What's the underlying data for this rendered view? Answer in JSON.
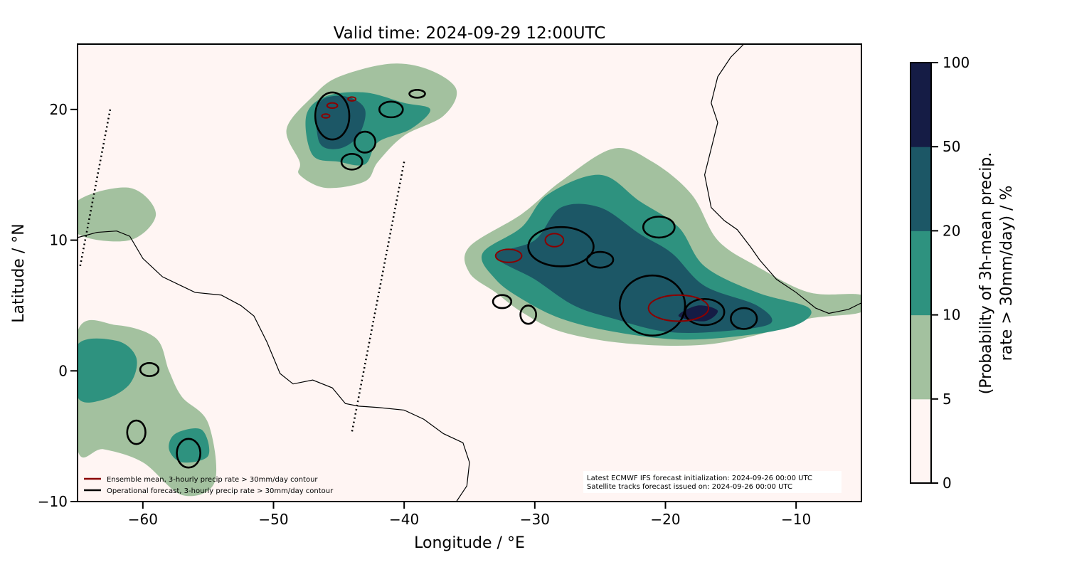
{
  "chart_data": {
    "type": "filled-contour-map",
    "title": "Valid time: 2024-09-29 12:00UTC",
    "xlabel": "Longitude / °E",
    "ylabel": "Latitude / °N",
    "xlim": [
      -65,
      -5
    ],
    "ylim": [
      -10,
      25
    ],
    "xticks": [
      -60,
      -50,
      -40,
      -30,
      -20,
      -10
    ],
    "xtick_labels": [
      "−60",
      "−50",
      "−40",
      "−30",
      "−20",
      "−10"
    ],
    "yticks": [
      -10,
      0,
      10,
      20
    ],
    "ytick_labels": [
      "−10",
      "0",
      "10",
      "20"
    ],
    "colorbar": {
      "label_line1": "(Probability of 3h-mean precip.",
      "label_line2": "rate > 30mm/day) / %",
      "levels": [
        0,
        5,
        10,
        20,
        50,
        100
      ],
      "level_labels": [
        "0",
        "5",
        "10",
        "20",
        "50",
        "100"
      ],
      "colors": [
        "#fff5f3",
        "#a3c19f",
        "#2e927f",
        "#1c5766",
        "#151c45"
      ]
    },
    "regions": [
      {
        "level": 1,
        "poly": [
          [
            -48,
            16
          ],
          [
            -49,
            18.5
          ],
          [
            -47,
            21
          ],
          [
            -45,
            22.5
          ],
          [
            -41,
            23.5
          ],
          [
            -38,
            23
          ],
          [
            -36,
            21.5
          ],
          [
            -37,
            19.5
          ],
          [
            -40,
            18
          ],
          [
            -42,
            16
          ],
          [
            -43,
            14.5
          ],
          [
            -46,
            14
          ],
          [
            -48,
            15
          ]
        ]
      },
      {
        "level": 2,
        "poly": [
          [
            -47,
            16.5
          ],
          [
            -47.5,
            19.5
          ],
          [
            -46,
            21
          ],
          [
            -43,
            21.3
          ],
          [
            -40,
            20.5
          ],
          [
            -38,
            20
          ],
          [
            -39.5,
            18.5
          ],
          [
            -42,
            17.5
          ],
          [
            -43,
            15.8
          ],
          [
            -45,
            16
          ]
        ]
      },
      {
        "level": 3,
        "poly": [
          [
            -46.5,
            17.5
          ],
          [
            -46.5,
            20.5
          ],
          [
            -44.5,
            21
          ],
          [
            -43,
            20
          ],
          [
            -43.5,
            18
          ],
          [
            -45,
            17
          ]
        ]
      },
      {
        "level": 1,
        "poly": [
          [
            -35,
            9.5
          ],
          [
            -31,
            12
          ],
          [
            -28,
            14.5
          ],
          [
            -24,
            17
          ],
          [
            -21,
            16
          ],
          [
            -18,
            13.5
          ],
          [
            -16,
            10
          ],
          [
            -13,
            8
          ],
          [
            -9,
            6
          ],
          [
            -5,
            5.8
          ],
          [
            -5,
            4.5
          ],
          [
            -9,
            4
          ],
          [
            -12,
            3
          ],
          [
            -17,
            2
          ],
          [
            -23,
            2.1
          ],
          [
            -28,
            3
          ],
          [
            -31,
            4.5
          ],
          [
            -33,
            6
          ],
          [
            -35,
            7.5
          ]
        ]
      },
      {
        "level": 2,
        "poly": [
          [
            -34,
            9
          ],
          [
            -31,
            11
          ],
          [
            -29,
            13.5
          ],
          [
            -25,
            15
          ],
          [
            -22,
            13
          ],
          [
            -19,
            11
          ],
          [
            -17,
            8
          ],
          [
            -13,
            6
          ],
          [
            -9,
            4.8
          ],
          [
            -10,
            3.5
          ],
          [
            -14,
            2.7
          ],
          [
            -19,
            2.4
          ],
          [
            -24,
            3
          ],
          [
            -28,
            4
          ],
          [
            -31,
            5.5
          ],
          [
            -33,
            7
          ]
        ]
      },
      {
        "level": 3,
        "poly": [
          [
            -33,
            8.8
          ],
          [
            -30,
            10
          ],
          [
            -28,
            12.5
          ],
          [
            -25,
            12.5
          ],
          [
            -22,
            10.5
          ],
          [
            -19.5,
            9
          ],
          [
            -17,
            6.5
          ],
          [
            -13,
            5
          ],
          [
            -12,
            3.6
          ],
          [
            -16,
            3
          ],
          [
            -20,
            3
          ],
          [
            -24,
            4
          ],
          [
            -27,
            5
          ],
          [
            -30,
            7
          ]
        ]
      },
      {
        "level": 4,
        "poly": [
          [
            -19,
            4.2
          ],
          [
            -17.5,
            5
          ],
          [
            -16,
            4.6
          ],
          [
            -17,
            3.8
          ]
        ]
      },
      {
        "level": 1,
        "poly": [
          [
            -65,
            3
          ],
          [
            -62,
            3.5
          ],
          [
            -59,
            2.5
          ],
          [
            -58,
            0
          ],
          [
            -57,
            -2
          ],
          [
            -55,
            -4
          ],
          [
            -54.5,
            -8.5
          ],
          [
            -57,
            -9.5
          ],
          [
            -60,
            -7
          ],
          [
            -63,
            -6
          ],
          [
            -65,
            -6
          ]
        ]
      },
      {
        "level": 2,
        "poly": [
          [
            -65,
            2
          ],
          [
            -62,
            2.3
          ],
          [
            -60.5,
            1
          ],
          [
            -61,
            -1
          ],
          [
            -63,
            -2.2
          ],
          [
            -65,
            -2
          ]
        ]
      },
      {
        "level": 2,
        "poly": [
          [
            -57.5,
            -4.8
          ],
          [
            -55.5,
            -4.5
          ],
          [
            -55,
            -6.5
          ],
          [
            -57,
            -7
          ],
          [
            -58,
            -6
          ]
        ]
      },
      {
        "level": 1,
        "poly": [
          [
            -65,
            13
          ],
          [
            -61,
            14
          ],
          [
            -59,
            12
          ],
          [
            -61,
            10
          ],
          [
            -65,
            10.5
          ]
        ]
      }
    ],
    "coastlines": [
      [
        [
          -65,
          10.2
        ],
        [
          -63.5,
          10.6
        ],
        [
          -62,
          10.7
        ],
        [
          -61,
          10.3
        ],
        [
          -60,
          8.6
        ],
        [
          -58.5,
          7.2
        ],
        [
          -56,
          6
        ],
        [
          -54,
          5.8
        ],
        [
          -52.5,
          5
        ],
        [
          -51.5,
          4.2
        ],
        [
          -50.5,
          2.2
        ],
        [
          -50,
          1
        ],
        [
          -49.5,
          -0.2
        ],
        [
          -48.5,
          -1
        ],
        [
          -47,
          -0.7
        ],
        [
          -45.5,
          -1.3
        ],
        [
          -44.5,
          -2.5
        ],
        [
          -43.5,
          -2.7
        ],
        [
          -42,
          -2.8
        ],
        [
          -40,
          -3
        ],
        [
          -38.5,
          -3.7
        ],
        [
          -37,
          -4.8
        ],
        [
          -35.5,
          -5.5
        ],
        [
          -35,
          -7
        ],
        [
          -35.2,
          -8.8
        ],
        [
          -36,
          -10
        ]
      ],
      [
        [
          -14,
          25
        ],
        [
          -15,
          24
        ],
        [
          -16,
          22.5
        ],
        [
          -16.5,
          20.5
        ],
        [
          -16,
          19
        ],
        [
          -16.5,
          17
        ],
        [
          -17,
          15
        ],
        [
          -16.7,
          13.5
        ],
        [
          -16.5,
          12.5
        ],
        [
          -15.5,
          11.5
        ],
        [
          -14.5,
          10.8
        ],
        [
          -13.5,
          9.5
        ],
        [
          -12.8,
          8.5
        ],
        [
          -11.5,
          7
        ],
        [
          -10,
          6
        ],
        [
          -8.5,
          4.8
        ],
        [
          -7.5,
          4.4
        ],
        [
          -6,
          4.7
        ],
        [
          -5,
          5.2
        ]
      ]
    ],
    "satellite_tracks": [
      [
        [
          -62.5,
          20
        ],
        [
          -64.8,
          8
        ]
      ],
      [
        [
          -40,
          16
        ],
        [
          -44,
          -4.7
        ]
      ]
    ],
    "operational_contours": [
      [
        -45.5,
        19.5,
        1.3,
        1.8
      ],
      [
        -43,
        17.5,
        0.8,
        0.8
      ],
      [
        -44,
        16,
        0.8,
        0.6
      ],
      [
        -41,
        20,
        0.9,
        0.6
      ],
      [
        -39,
        21.2,
        0.6,
        0.3
      ],
      [
        -20.5,
        11,
        1.2,
        0.8
      ],
      [
        -28,
        9.5,
        2.5,
        1.5
      ],
      [
        -25,
        8.5,
        1,
        0.6
      ],
      [
        -21,
        5,
        2.5,
        2.3
      ],
      [
        -17,
        4.5,
        1.5,
        1
      ],
      [
        -14,
        4,
        1,
        0.8
      ],
      [
        -32.5,
        5.3,
        0.7,
        0.5
      ],
      [
        -30.5,
        4.3,
        0.6,
        0.7
      ],
      [
        -60.5,
        -4.7,
        0.7,
        0.9
      ],
      [
        -56.5,
        -6.3,
        0.9,
        1.1
      ],
      [
        -59.5,
        0.1,
        0.7,
        0.5
      ]
    ],
    "ensemble_contours": [
      [
        -45.5,
        20.3,
        0.4,
        0.2
      ],
      [
        -44,
        20.8,
        0.3,
        0.15
      ],
      [
        -46,
        19.5,
        0.3,
        0.15
      ],
      [
        -32,
        8.8,
        1,
        0.5
      ],
      [
        -28.5,
        10,
        0.7,
        0.5
      ],
      [
        -19,
        4.8,
        2.3,
        1
      ]
    ]
  },
  "legend": {
    "ensemble_label": "Ensemble mean, 3-hourly precip rate > 30mm/day contour",
    "operational_label": "Operational forecast, 3-hourly precip rate > 30mm/day contour",
    "ensemble_color": "#8b0000",
    "operational_color": "#000000"
  },
  "info_box": {
    "line1": "Latest ECMWF IFS forecast initialization: 2024-09-26 00:00 UTC",
    "line2": "Satellite tracks forecast issued on: 2024-09-26 00:00 UTC"
  }
}
